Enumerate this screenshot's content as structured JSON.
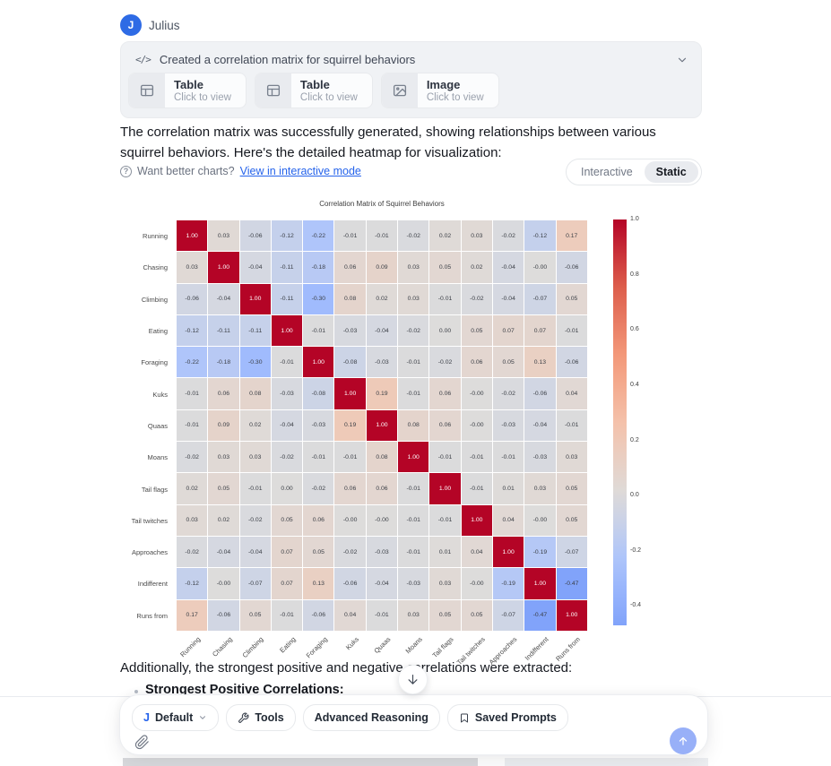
{
  "header": {
    "avatar_letter": "J",
    "agent_name": "Julius"
  },
  "tool_card": {
    "code_icon": "</>",
    "title": "Created a correlation matrix for squirrel behaviors",
    "attachments": [
      {
        "type": "Table",
        "subtitle": "Click to view"
      },
      {
        "type": "Table",
        "subtitle": "Click to view"
      },
      {
        "type": "Image",
        "subtitle": "Click to view"
      }
    ]
  },
  "message": {
    "paragraph": "The correlation matrix was successfully generated, showing relationships between various squirrel behaviors. Here's the detailed heatmap for visualization:",
    "charts_hint": {
      "question": "Want better charts?",
      "link": "View in interactive mode"
    },
    "toggle": {
      "options": [
        "Interactive",
        "Static"
      ],
      "selected": "Static"
    },
    "closing_paragraph": "Additionally, the strongest positive and negative correlations were extracted:",
    "bullet": "Strongest Positive Correlations:"
  },
  "chart_data": {
    "type": "heatmap",
    "title": "Correlation Matrix of Squirrel Behaviors",
    "labels": [
      "Running",
      "Chasing",
      "Climbing",
      "Eating",
      "Foraging",
      "Kuks",
      "Quaas",
      "Moans",
      "Tail flags",
      "Tail twitches",
      "Approaches",
      "Indifferent",
      "Runs from"
    ],
    "matrix": [
      [
        1.0,
        0.03,
        -0.06,
        -0.12,
        -0.22,
        -0.01,
        -0.01,
        -0.02,
        0.02,
        0.03,
        -0.02,
        -0.12,
        0.17
      ],
      [
        0.03,
        1.0,
        -0.04,
        -0.11,
        -0.18,
        0.06,
        0.09,
        0.03,
        0.05,
        0.02,
        -0.04,
        -0.0,
        -0.06
      ],
      [
        -0.06,
        -0.04,
        1.0,
        -0.11,
        -0.3,
        0.08,
        0.02,
        0.03,
        -0.01,
        -0.02,
        -0.04,
        -0.07,
        0.05
      ],
      [
        -0.12,
        -0.11,
        -0.11,
        1.0,
        -0.01,
        -0.03,
        -0.04,
        -0.02,
        0.0,
        0.05,
        0.07,
        0.07,
        -0.01
      ],
      [
        -0.22,
        -0.18,
        -0.3,
        -0.01,
        1.0,
        -0.08,
        -0.03,
        -0.01,
        -0.02,
        0.06,
        0.05,
        0.13,
        -0.06
      ],
      [
        -0.01,
        0.06,
        0.08,
        -0.03,
        -0.08,
        1.0,
        0.19,
        -0.01,
        0.06,
        -0.0,
        -0.02,
        -0.06,
        0.04
      ],
      [
        -0.01,
        0.09,
        0.02,
        -0.04,
        -0.03,
        0.19,
        1.0,
        0.08,
        0.06,
        -0.0,
        -0.03,
        -0.04,
        -0.01
      ],
      [
        -0.02,
        0.03,
        0.03,
        -0.02,
        -0.01,
        -0.01,
        0.08,
        1.0,
        -0.01,
        -0.01,
        -0.01,
        -0.03,
        0.03
      ],
      [
        0.02,
        0.05,
        -0.01,
        0.0,
        -0.02,
        0.06,
        0.06,
        -0.01,
        1.0,
        -0.01,
        0.01,
        0.03,
        0.05
      ],
      [
        0.03,
        0.02,
        -0.02,
        0.05,
        0.06,
        -0.0,
        -0.0,
        -0.01,
        -0.01,
        1.0,
        0.04,
        -0.0,
        0.05
      ],
      [
        -0.02,
        -0.04,
        -0.04,
        0.07,
        0.05,
        -0.02,
        -0.03,
        -0.01,
        0.01,
        0.04,
        1.0,
        -0.19,
        -0.07
      ],
      [
        -0.12,
        -0.0,
        -0.07,
        0.07,
        0.13,
        -0.06,
        -0.04,
        -0.03,
        0.03,
        -0.0,
        -0.19,
        1.0,
        -0.47
      ],
      [
        0.17,
        -0.06,
        0.05,
        -0.01,
        -0.06,
        0.04,
        -0.01,
        0.03,
        0.05,
        0.05,
        -0.07,
        -0.47,
        1.0
      ]
    ],
    "colormap": "coolwarm",
    "value_range": [
      -0.47,
      1.0
    ],
    "colorbar_ticks": [
      "1.0",
      "0.8",
      "0.6",
      "0.4",
      "0.2",
      "0.0",
      "-0.2",
      "-0.4"
    ],
    "legend_position": "right-colorbar",
    "grid": false
  },
  "composer": {
    "model_pill": {
      "prefix": "J",
      "label": "Default"
    },
    "tools_label": "Tools",
    "advanced_label": "Advanced Reasoning",
    "saved_label": "Saved Prompts"
  },
  "colors": {
    "avatar_blue": "#2e6be5",
    "link_blue": "#2563eb",
    "send_button_blue": "#98b0f8",
    "heatmap_max_red": "#b40426",
    "heatmap_min_blue": "#3b4cc0",
    "card_bg": "#f0f2f5"
  }
}
